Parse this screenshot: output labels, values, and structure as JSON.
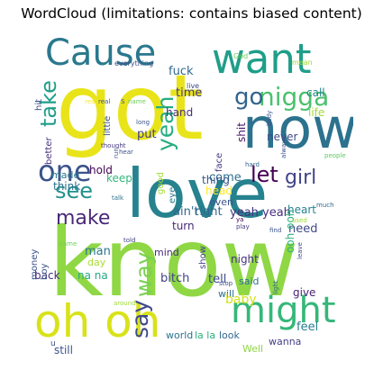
{
  "chart_data": {
    "type": "wordcloud",
    "title": "WordCloud (limitations: contains biased content)",
    "background": "#ffffff",
    "colormap": "viridis",
    "words": [
      {
        "text": "know",
        "weight": 1.0,
        "color": "#8fd744",
        "rotated": false
      },
      {
        "text": "got",
        "weight": 0.95,
        "color": "#e8e419",
        "rotated": false
      },
      {
        "text": "love",
        "weight": 0.9,
        "color": "#26828e",
        "rotated": false
      },
      {
        "text": "now",
        "weight": 0.75,
        "color": "#2c728e",
        "rotated": false
      },
      {
        "text": "oh oh",
        "weight": 0.6,
        "color": "#d8e219",
        "rotated": false
      },
      {
        "text": "might",
        "weight": 0.55,
        "color": "#35b779",
        "rotated": false
      },
      {
        "text": "want",
        "weight": 0.55,
        "color": "#1f9e89",
        "rotated": false
      },
      {
        "text": "Cause",
        "weight": 0.5,
        "color": "#2a788e",
        "rotated": false
      },
      {
        "text": "one",
        "weight": 0.45,
        "color": "#3b528b",
        "rotated": false
      },
      {
        "text": "nigga",
        "weight": 0.35,
        "color": "#4ac16d",
        "rotated": false
      },
      {
        "text": "go",
        "weight": 0.33,
        "color": "#33638d",
        "rotated": false
      },
      {
        "text": "make",
        "weight": 0.3,
        "color": "#482878",
        "rotated": false
      },
      {
        "text": "see",
        "weight": 0.3,
        "color": "#21918c",
        "rotated": false
      },
      {
        "text": "let",
        "weight": 0.3,
        "color": "#440154",
        "rotated": false
      },
      {
        "text": "girl",
        "weight": 0.27,
        "color": "#414487",
        "rotated": false
      },
      {
        "text": "take",
        "weight": 0.3,
        "color": "#1f9e89",
        "rotated": true
      },
      {
        "text": "yeah",
        "weight": 0.3,
        "color": "#27ad81",
        "rotated": true
      },
      {
        "text": "say",
        "weight": 0.28,
        "color": "#3e4a89",
        "rotated": true
      },
      {
        "text": "way",
        "weight": 0.28,
        "color": "#7ad151",
        "rotated": true
      },
      {
        "text": "fuck",
        "weight": 0.12,
        "color": "#30698e",
        "rotated": false
      },
      {
        "text": "time",
        "weight": 0.12,
        "color": "#443983",
        "rotated": false
      },
      {
        "text": "hand",
        "weight": 0.11,
        "color": "#472d7b",
        "rotated": false
      },
      {
        "text": "life",
        "weight": 0.11,
        "color": "#a0da39",
        "rotated": false
      },
      {
        "text": "call",
        "weight": 0.11,
        "color": "#25848e",
        "rotated": false
      },
      {
        "text": "never",
        "weight": 0.11,
        "color": "#3e4a89",
        "rotated": false
      },
      {
        "text": "put",
        "weight": 0.12,
        "color": "#424086",
        "rotated": false
      },
      {
        "text": "shit",
        "weight": 0.11,
        "color": "#481467",
        "rotated": true
      },
      {
        "text": "come",
        "weight": 0.12,
        "color": "#2e6f8e",
        "rotated": false
      },
      {
        "text": "keep",
        "weight": 0.12,
        "color": "#35b779",
        "rotated": false
      },
      {
        "text": "hold",
        "weight": 0.12,
        "color": "#440154",
        "rotated": false
      },
      {
        "text": "thing",
        "weight": 0.11,
        "color": "#3a548c",
        "rotated": false
      },
      {
        "text": "head",
        "weight": 0.11,
        "color": "#fde725",
        "rotated": false
      },
      {
        "text": "made",
        "weight": 0.1,
        "color": "#2a788e",
        "rotated": false
      },
      {
        "text": "think",
        "weight": 0.11,
        "color": "#2c728e",
        "rotated": false
      },
      {
        "text": "even",
        "weight": 0.1,
        "color": "#3b528b",
        "rotated": false
      },
      {
        "text": "heart",
        "weight": 0.11,
        "color": "#26828e",
        "rotated": false
      },
      {
        "text": "ain't",
        "weight": 0.13,
        "color": "#31688e",
        "rotated": false
      },
      {
        "text": "right",
        "weight": 0.13,
        "color": "#31688e",
        "rotated": false
      },
      {
        "text": "yeah yeah",
        "weight": 0.13,
        "color": "#472f7d",
        "rotated": false
      },
      {
        "text": "need",
        "weight": 0.12,
        "color": "#3e4a89",
        "rotated": false
      },
      {
        "text": "man",
        "weight": 0.12,
        "color": "#2a788e",
        "rotated": false
      },
      {
        "text": "turn",
        "weight": 0.11,
        "color": "#482878",
        "rotated": false
      },
      {
        "text": "day",
        "weight": 0.1,
        "color": "#a8db34",
        "rotated": false
      },
      {
        "text": "mind",
        "weight": 0.1,
        "color": "#472d7b",
        "rotated": false
      },
      {
        "text": "night",
        "weight": 0.11,
        "color": "#46327e",
        "rotated": false
      },
      {
        "text": "ooh ooh",
        "weight": 0.1,
        "color": "#2ab07f",
        "rotated": true
      },
      {
        "text": "back",
        "weight": 0.11,
        "color": "#472c7a",
        "rotated": false
      },
      {
        "text": "na na",
        "weight": 0.12,
        "color": "#23a983",
        "rotated": false
      },
      {
        "text": "bitch",
        "weight": 0.12,
        "color": "#414487",
        "rotated": false
      },
      {
        "text": "tell",
        "weight": 0.13,
        "color": "#3e4a89",
        "rotated": false
      },
      {
        "text": "said",
        "weight": 0.11,
        "color": "#2c728e",
        "rotated": false
      },
      {
        "text": "will",
        "weight": 0.1,
        "color": "#2e6e8e",
        "rotated": false
      },
      {
        "text": "give",
        "weight": 0.11,
        "color": "#482173",
        "rotated": false
      },
      {
        "text": "baby",
        "weight": 0.13,
        "color": "#d0e11c",
        "rotated": false
      },
      {
        "text": "feel",
        "weight": 0.12,
        "color": "#287d8e",
        "rotated": false
      },
      {
        "text": "still",
        "weight": 0.11,
        "color": "#3b528b",
        "rotated": false
      },
      {
        "text": "world",
        "weight": 0.1,
        "color": "#2c728e",
        "rotated": false
      },
      {
        "text": "la la",
        "weight": 0.1,
        "color": "#2ab07f",
        "rotated": false
      },
      {
        "text": "look",
        "weight": 0.1,
        "color": "#31688e",
        "rotated": false
      },
      {
        "text": "Well",
        "weight": 0.1,
        "color": "#8fd744",
        "rotated": false
      },
      {
        "text": "wanna",
        "weight": 0.1,
        "color": "#433e85",
        "rotated": false
      },
      {
        "text": "money",
        "weight": 0.09,
        "color": "#3b528b",
        "rotated": true
      },
      {
        "text": "boy",
        "weight": 0.09,
        "color": "#3b528b",
        "rotated": true
      },
      {
        "text": "show",
        "weight": 0.09,
        "color": "#424086",
        "rotated": true
      },
      {
        "text": "better",
        "weight": 0.09,
        "color": "#46327e",
        "rotated": true
      },
      {
        "text": "good",
        "weight": 0.09,
        "color": "#a5db36",
        "rotated": true
      },
      {
        "text": "eye",
        "weight": 0.09,
        "color": "#2a788e",
        "rotated": true
      },
      {
        "text": "face",
        "weight": 0.09,
        "color": "#443983",
        "rotated": true
      },
      {
        "text": "little",
        "weight": 0.09,
        "color": "#3b528b",
        "rotated": true
      },
      {
        "text": "hit",
        "weight": 0.08,
        "color": "#3e4a89",
        "rotated": true
      },
      {
        "text": "everything",
        "weight": 0.06,
        "color": "#3b528b",
        "rotated": false
      },
      {
        "text": "God",
        "weight": 0.06,
        "color": "#6ece58",
        "rotated": false
      },
      {
        "text": "mean",
        "weight": 0.06,
        "color": "#a0da39",
        "rotated": false
      },
      {
        "text": "live",
        "weight": 0.06,
        "color": "#3e4a89",
        "rotated": false
      },
      {
        "text": "really",
        "weight": 0.06,
        "color": "#fde725",
        "rotated": false
      },
      {
        "text": "real",
        "weight": 0.06,
        "color": "#3b528b",
        "rotated": false
      },
      {
        "text": "name",
        "weight": 0.05,
        "color": "#6ece58",
        "rotated": false
      },
      {
        "text": "long",
        "weight": 0.06,
        "color": "#3b528b",
        "rotated": false
      },
      {
        "text": "thought",
        "weight": 0.06,
        "color": "#443983",
        "rotated": false
      },
      {
        "text": "hear",
        "weight": 0.06,
        "color": "#3b528b",
        "rotated": false
      },
      {
        "text": "talk",
        "weight": 0.06,
        "color": "#2c728e",
        "rotated": false
      },
      {
        "text": "people",
        "weight": 0.06,
        "color": "#5ec962",
        "rotated": false
      },
      {
        "text": "much",
        "weight": 0.06,
        "color": "#31688e",
        "rotated": false
      },
      {
        "text": "used",
        "weight": 0.05,
        "color": "#a0da39",
        "rotated": false
      },
      {
        "text": "play",
        "weight": 0.05,
        "color": "#443983",
        "rotated": false
      },
      {
        "text": "ya",
        "weight": 0.06,
        "color": "#440154",
        "rotated": false
      },
      {
        "text": "find",
        "weight": 0.06,
        "color": "#3b528b",
        "rotated": false
      },
      {
        "text": "came",
        "weight": 0.05,
        "color": "#6ece58",
        "rotated": false
      },
      {
        "text": "told",
        "weight": 0.05,
        "color": "#414487",
        "rotated": false
      },
      {
        "text": "stop",
        "weight": 0.05,
        "color": "#3b528b",
        "rotated": false
      },
      {
        "text": "around",
        "weight": 0.05,
        "color": "#a0da39",
        "rotated": false
      },
      {
        "text": "body",
        "weight": 0.05,
        "color": "#3b528b",
        "rotated": true
      },
      {
        "text": "alway",
        "weight": 0.05,
        "color": "#3b528b",
        "rotated": true
      },
      {
        "text": "hard",
        "weight": 0.05,
        "color": "#31688e",
        "rotated": false
      },
      {
        "text": "light",
        "weight": 0.05,
        "color": "#31688e",
        "rotated": true
      },
      {
        "text": "leave",
        "weight": 0.05,
        "color": "#414487",
        "rotated": true
      },
      {
        "text": "run",
        "weight": 0.05,
        "color": "#3b528b",
        "rotated": true
      },
      {
        "text": "u",
        "weight": 0.05,
        "color": "#3b528b",
        "rotated": false
      },
      {
        "text": "S",
        "weight": 0.05,
        "color": "#3b528b",
        "rotated": false
      }
    ]
  }
}
